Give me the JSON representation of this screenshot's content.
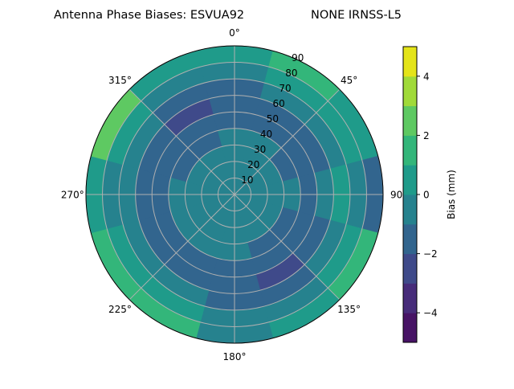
{
  "chart_data": {
    "type": "heatmap",
    "subtype": "polar-filled-contour",
    "title_left": "Antenna Phase Biases: ESVUA92",
    "title_right": "NONE IRNSS-L5",
    "angular_axis": {
      "direction": "clockwise",
      "zero_location": "top",
      "tick_labels": [
        "0°",
        "45°",
        "90",
        "135°",
        "180°",
        "225°",
        "270°",
        "315°"
      ],
      "tick_values": [
        0,
        45,
        90,
        135,
        180,
        225,
        270,
        315
      ]
    },
    "radial_axis": {
      "range": [
        0,
        90
      ],
      "tick_labels": [
        "10",
        "20",
        "30",
        "40",
        "50",
        "60",
        "70",
        "80",
        "90"
      ],
      "tick_values": [
        10,
        20,
        30,
        40,
        50,
        60,
        70,
        80,
        90
      ]
    },
    "grid": true,
    "colorbar": {
      "label": "Bias (mm)",
      "range": [
        -5,
        5
      ],
      "levels": [
        -5,
        -4,
        -3,
        -2,
        -1,
        0,
        1,
        2,
        3,
        4,
        5
      ],
      "tick_values": [
        -4,
        -2,
        0,
        2,
        4
      ],
      "tick_labels": [
        "−4",
        "−2",
        "0",
        "2",
        "4"
      ],
      "colormap": "viridis",
      "colors": [
        "#471365",
        "#472c7a",
        "#3f4a8a",
        "#32658e",
        "#26828e",
        "#1f9b8a",
        "#33b67a",
        "#5ec962",
        "#a0da39",
        "#e4e419"
      ]
    },
    "grid_azimuths_deg": [
      0,
      30,
      60,
      90,
      120,
      150,
      180,
      210,
      240,
      270,
      300,
      330
    ],
    "grid_zenith_bins_deg": [
      0,
      10,
      20,
      30,
      40,
      50,
      60,
      70,
      80,
      90
    ],
    "bias_mm": [
      [
        -0.5,
        -0.5,
        -0.5,
        -0.5,
        -1.5,
        -1.5,
        -1.5,
        -0.5,
        0.5
      ],
      [
        -0.5,
        -0.5,
        -0.5,
        -0.5,
        -1.5,
        -1.5,
        -0.5,
        0.5,
        1.5
      ],
      [
        -0.5,
        -0.5,
        -0.5,
        -1.5,
        -1.5,
        -1.5,
        -0.5,
        0.5,
        0.5
      ],
      [
        -0.5,
        -0.5,
        -0.5,
        -0.5,
        -1.5,
        -0.5,
        0.5,
        -0.5,
        -1.5
      ],
      [
        -0.5,
        -0.5,
        -0.5,
        -1.5,
        -1.5,
        -1.5,
        -0.5,
        0.5,
        1.5
      ],
      [
        -0.5,
        -0.5,
        -0.5,
        -1.5,
        -1.5,
        -2.5,
        -1.5,
        -0.5,
        0.5
      ],
      [
        -0.5,
        -0.5,
        -0.5,
        -0.5,
        -1.5,
        -1.5,
        -1.5,
        -0.5,
        -0.5
      ],
      [
        -0.5,
        -0.5,
        -0.5,
        -0.5,
        -1.5,
        -1.5,
        -0.5,
        0.5,
        1.5
      ],
      [
        -0.5,
        -0.5,
        -0.5,
        -0.5,
        -1.5,
        -1.5,
        -0.5,
        0.5,
        1.5
      ],
      [
        -0.5,
        -0.5,
        -0.5,
        -0.5,
        -1.5,
        -1.5,
        -0.5,
        -0.5,
        0.5
      ],
      [
        -0.5,
        -0.5,
        -0.5,
        -1.5,
        -1.5,
        -1.5,
        -0.5,
        0.5,
        2.5
      ],
      [
        -0.5,
        -0.5,
        -0.5,
        -1.5,
        -1.5,
        -2.5,
        -1.5,
        -0.5,
        0.5
      ]
    ]
  }
}
